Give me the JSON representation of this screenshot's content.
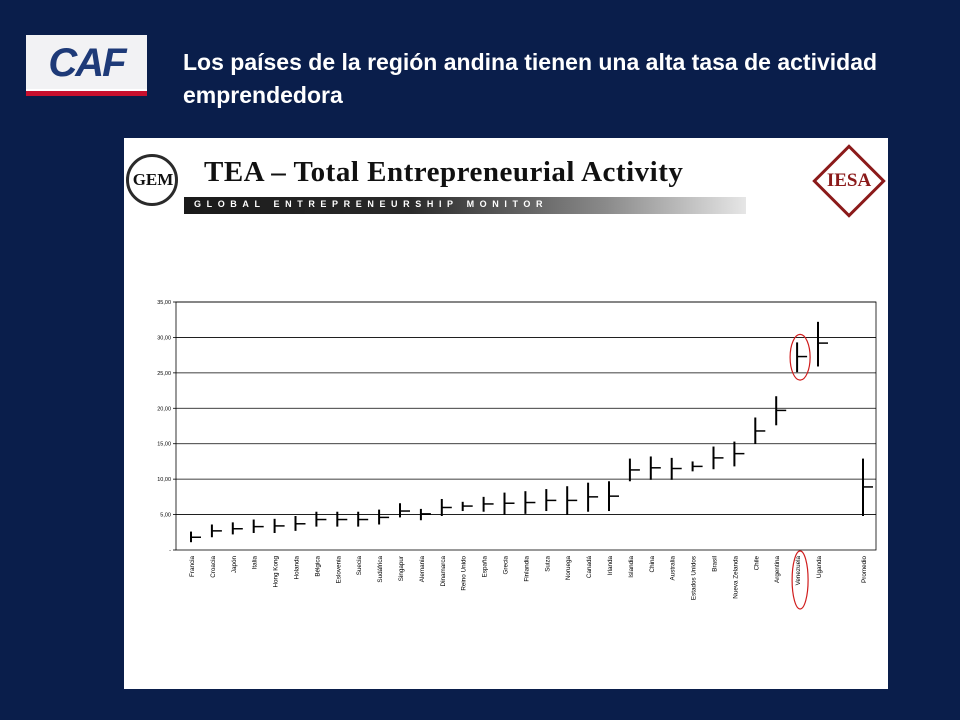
{
  "slide": {
    "title": "Los países de la región andina tienen una alta tasa de actividad emprendedora"
  },
  "logos": {
    "caf": "CAF",
    "gem": "GEM",
    "gem_strip": "GLOBAL ENTREPRENEURSHIP MONITOR",
    "iesa": "IESA"
  },
  "chart_title": "TEA – Total Entrepreneurial Activity",
  "colors": {
    "background": "#0a1e4b",
    "bars": "#000000",
    "highlight": "#d01c1c"
  },
  "chart_data": {
    "type": "high-low-mean",
    "title": "TEA – Total Entrepreneurial Activity",
    "xlabel": "",
    "ylabel": "",
    "ylim": [
      0,
      35
    ],
    "yticks": [
      "-",
      "5,00",
      "10,00",
      "15,00",
      "20,00",
      "25,00",
      "30,00",
      "35,00"
    ],
    "grid": true,
    "legend": "none",
    "highlighted": [
      "Venezuela"
    ],
    "categories": [
      "Francia",
      "Croacia",
      "Japón",
      "Italia",
      "Hong Kong",
      "Holanda",
      "Bélgica",
      "Eslovenia",
      "Suecia",
      "Sudáfrica",
      "Singapur",
      "Alemania",
      "Dinamarca",
      "Reino Unido",
      "España",
      "Grecia",
      "Finlandia",
      "Suiza",
      "Noruega",
      "Canadá",
      "Irlanda",
      "Islandia",
      "China",
      "Australia",
      "Estados Unidos",
      "Brasil",
      "Nueva Zelanda",
      "Chile",
      "Argentina",
      "Venezuela",
      "Uganda",
      "Promedio"
    ],
    "high": [
      2.6,
      3.6,
      3.9,
      4.3,
      4.4,
      4.8,
      5.4,
      5.4,
      5.4,
      5.7,
      6.6,
      5.8,
      7.2,
      6.8,
      7.5,
      8.1,
      8.3,
      8.6,
      9.0,
      9.5,
      9.7,
      12.9,
      13.2,
      13.0,
      12.5,
      14.6,
      15.3,
      18.7,
      21.7,
      29.3,
      32.2,
      12.9
    ],
    "low": [
      1.1,
      1.8,
      2.2,
      2.4,
      2.4,
      2.7,
      3.3,
      3.3,
      3.3,
      3.6,
      4.6,
      4.2,
      4.8,
      5.5,
      5.4,
      5.0,
      5.1,
      5.5,
      5.0,
      5.4,
      5.5,
      9.7,
      9.9,
      9.9,
      11.1,
      11.4,
      11.8,
      15.0,
      17.6,
      25.1,
      25.9,
      4.8
    ],
    "mean": [
      1.8,
      2.7,
      3.0,
      3.3,
      3.4,
      3.7,
      4.3,
      4.3,
      4.3,
      4.6,
      5.5,
      5.1,
      6.0,
      6.2,
      6.5,
      6.6,
      6.7,
      7.0,
      7.0,
      7.5,
      7.6,
      11.3,
      11.6,
      11.5,
      11.8,
      13.0,
      13.6,
      16.8,
      19.7,
      27.3,
      29.2,
      8.9
    ]
  }
}
